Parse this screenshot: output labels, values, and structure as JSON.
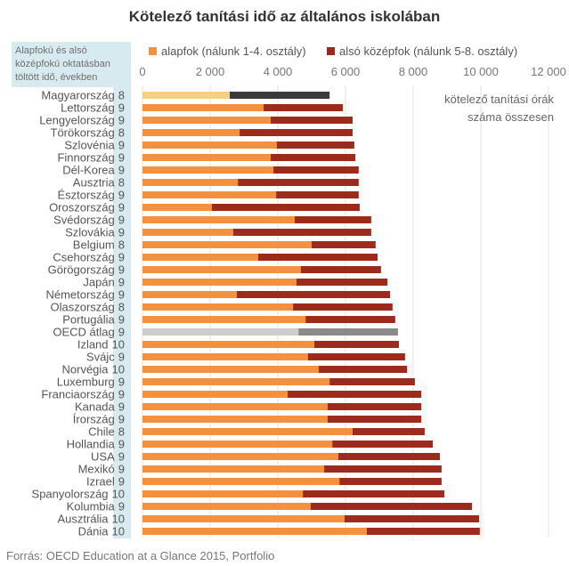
{
  "chart_data": {
    "type": "bar",
    "orientation": "horizontal",
    "stacked": true,
    "title": "Kötelező tanítási idő az általános iskolában",
    "xlabel": "",
    "ylabel": "",
    "axis_position": "top",
    "xlim": [
      0,
      12000
    ],
    "x_ticks": [
      0,
      2000,
      4000,
      6000,
      8000,
      10000,
      12000
    ],
    "x_tick_labels": [
      "0",
      "2 000",
      "4 000",
      "6 000",
      "8 000",
      "10 000",
      "12 000"
    ],
    "grid": true,
    "legend_position": "top",
    "years_header": [
      "Alapfokú és alsó",
      "középfokú oktatásban",
      "töltött idő, években"
    ],
    "annotation": [
      "kötelező tanítási órák",
      "száma összesen"
    ],
    "categories": [
      "Magyarország",
      "Lettország",
      "Lengyelország",
      "Törökország",
      "Szlovénia",
      "Finnország",
      "Dél-Korea",
      "Ausztria",
      "Észtország",
      "Oroszország",
      "Svédország",
      "Szlovákia",
      "Belgium",
      "Csehország",
      "Görögország",
      "Japán",
      "Németország",
      "Olaszország",
      "Portugália",
      "OECD átlag",
      "Izland",
      "Svájc",
      "Norvégia",
      "Luxemburg",
      "Franciaország",
      "Kanada",
      "Írország",
      "Chile",
      "Hollandia",
      "USA",
      "Mexikó",
      "Izrael",
      "Spanyolország",
      "Kolumbia",
      "Ausztrália",
      "Dánia"
    ],
    "years": [
      8,
      9,
      9,
      8,
      9,
      9,
      9,
      8,
      9,
      9,
      9,
      9,
      8,
      9,
      9,
      9,
      9,
      8,
      9,
      9,
      10,
      9,
      10,
      9,
      9,
      9,
      9,
      8,
      9,
      9,
      9,
      9,
      10,
      9,
      10,
      10
    ],
    "series": [
      {
        "name": "alapfok (nálunk 1-4. osztály)",
        "color": "#f3913e",
        "values": [
          2580,
          3580,
          3790,
          2870,
          3970,
          3790,
          3870,
          2820,
          3950,
          2050,
          4500,
          2680,
          5000,
          3420,
          4680,
          4550,
          2790,
          4450,
          4820,
          4610,
          5080,
          4890,
          5210,
          5530,
          4290,
          5470,
          5470,
          6210,
          5610,
          5790,
          5370,
          5820,
          4740,
          4970,
          5970,
          6630
        ]
      },
      {
        "name": "alsó középfok (nálunk 5-8. osztály)",
        "color": "#9c2b1e",
        "values": [
          2950,
          2340,
          2420,
          3340,
          2290,
          2500,
          2520,
          3570,
          2440,
          4370,
          2260,
          4080,
          1890,
          3530,
          2370,
          2690,
          4530,
          2940,
          2650,
          2940,
          2500,
          2870,
          2610,
          2520,
          3950,
          2770,
          2770,
          2130,
          2970,
          3000,
          3470,
          3020,
          4180,
          4770,
          3980,
          3340
        ]
      }
    ],
    "highlight": {
      "Magyarország": [
        "#f6cf80",
        "#3a3a3a"
      ],
      "OECD átlag": [
        "#cdcdcd",
        "#8a8a8a"
      ]
    }
  },
  "colors": {
    "years_column_bg": "#d6eaf0"
  },
  "source": "Forrás: OECD Education at a Glance 2015, Portfolio"
}
